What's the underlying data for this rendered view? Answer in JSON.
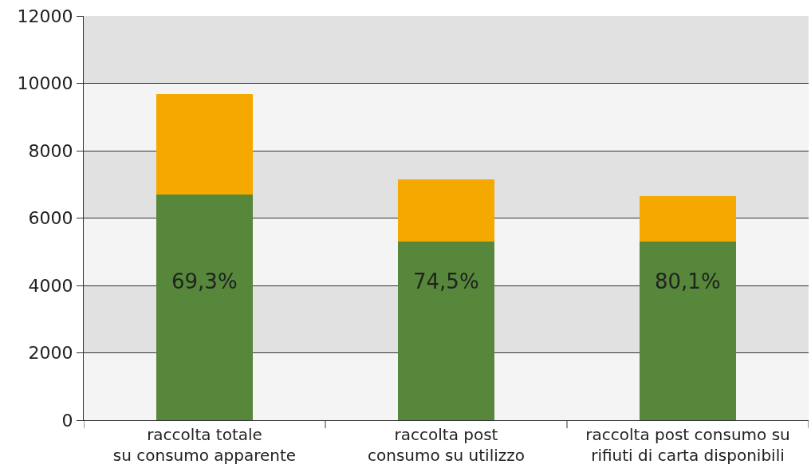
{
  "chart_data": {
    "type": "bar",
    "stacked": true,
    "categories": [
      "raccolta totale\nsu consumo apparente",
      "raccolta post\nconsumo su utilizzo",
      "raccolta post consumo su\nrifiuti di carta disponibili"
    ],
    "series": [
      {
        "color": "#56873a",
        "values": [
          6700,
          5300,
          5300
        ]
      },
      {
        "color": "#f5a800",
        "values": [
          2980,
          1840,
          1340
        ]
      }
    ],
    "ylim": [
      0,
      12000
    ],
    "yticks": [
      0,
      2000,
      4000,
      6000,
      8000,
      10000,
      12000
    ],
    "grid": "y",
    "annotations": [
      "69,3%",
      "74,5%",
      "80,1%"
    ],
    "bands": [
      {
        "axis": "y",
        "from": 0,
        "to": 2000,
        "color": "#f4f4f4"
      },
      {
        "axis": "y",
        "from": 2000,
        "to": 4000,
        "color": "#e1e1e1"
      },
      {
        "axis": "y",
        "from": 4000,
        "to": 6000,
        "color": "#f4f4f4"
      },
      {
        "axis": "y",
        "from": 6000,
        "to": 8000,
        "color": "#e1e1e1"
      },
      {
        "axis": "y",
        "from": 8000,
        "to": 10000,
        "color": "#f4f4f4"
      },
      {
        "axis": "y",
        "from": 10000,
        "to": 12000,
        "color": "#e1e1e1"
      }
    ]
  }
}
